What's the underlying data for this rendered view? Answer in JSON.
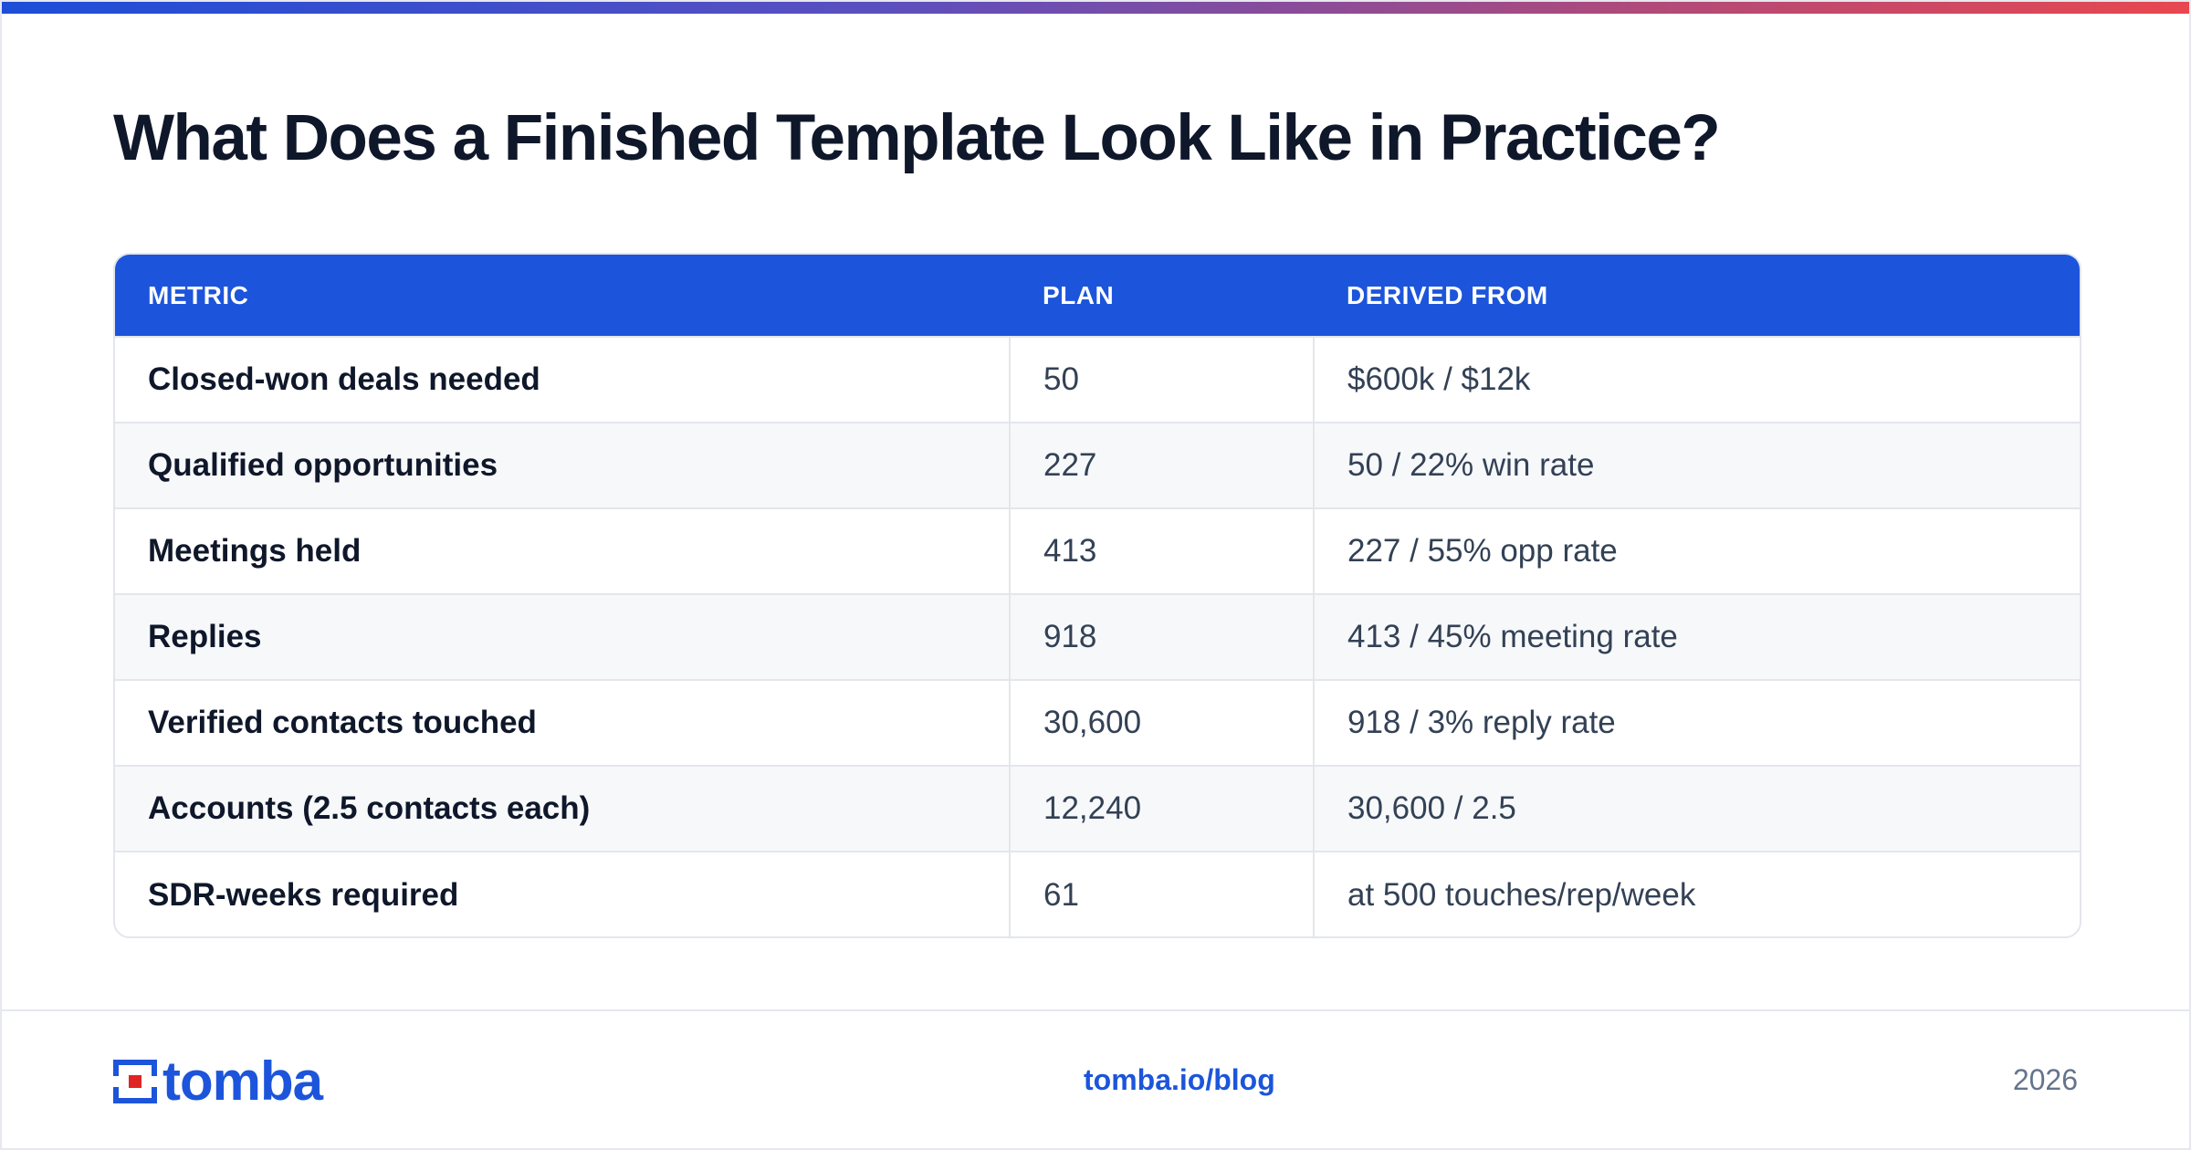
{
  "title": "What Does a Finished Template Look Like in Practice?",
  "colors": {
    "accent": "#1c55db",
    "gradient_start": "#1d4ed8",
    "gradient_end": "#e8474f",
    "logo_red": "#e02424"
  },
  "table": {
    "headers": [
      "METRIC",
      "PLAN",
      "DERIVED FROM"
    ],
    "rows": [
      {
        "metric": "Closed-won deals needed",
        "plan": "50",
        "derived": "$600k / $12k"
      },
      {
        "metric": "Qualified opportunities",
        "plan": "227",
        "derived": "50 / 22% win rate"
      },
      {
        "metric": "Meetings held",
        "plan": "413",
        "derived": "227 / 55% opp rate"
      },
      {
        "metric": "Replies",
        "plan": "918",
        "derived": "413 / 45% meeting rate"
      },
      {
        "metric": "Verified contacts touched",
        "plan": "30,600",
        "derived": "918 / 3% reply rate"
      },
      {
        "metric": "Accounts (2.5 contacts each)",
        "plan": "12,240",
        "derived": "30,600 / 2.5"
      },
      {
        "metric": "SDR-weeks required",
        "plan": "61",
        "derived": "at 500 touches/rep/week"
      }
    ]
  },
  "footer": {
    "logo_text": "tomba",
    "link": "tomba.io/blog",
    "year": "2026"
  }
}
